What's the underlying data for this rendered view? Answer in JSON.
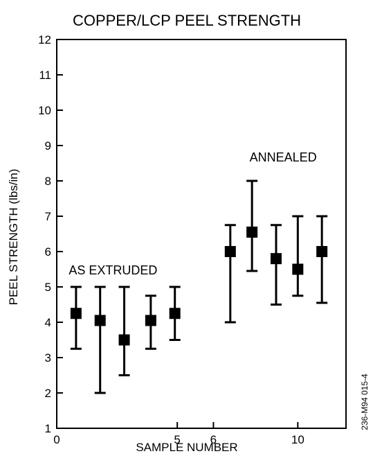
{
  "chart_data": {
    "type": "scatter",
    "title": "COPPER/LCP PEEL STRENGTH",
    "xlabel": "SAMPLE NUMBER",
    "ylabel": "PEEL STRENGTH (lbs/in)",
    "xlim": [
      0,
      12
    ],
    "ylim": [
      1,
      12
    ],
    "yticks": [
      1,
      2,
      3,
      4,
      5,
      6,
      7,
      8,
      9,
      10,
      11,
      12
    ],
    "xtick_labels": [
      {
        "x": 0,
        "label": "0"
      },
      {
        "x": 5,
        "label": "5"
      },
      {
        "x": 6.5,
        "label": "6"
      },
      {
        "x": 10,
        "label": "10"
      }
    ],
    "grid": false,
    "series": [
      {
        "marker": "filled-square",
        "x": [
          0.8,
          1.8,
          2.8,
          3.9,
          4.9,
          7.2,
          8.1,
          9.1,
          10.0,
          11.0
        ],
        "y": [
          4.25,
          4.05,
          3.5,
          4.05,
          4.25,
          6.0,
          6.55,
          5.8,
          5.5,
          6.0
        ],
        "y_low": [
          3.25,
          2.0,
          2.5,
          3.25,
          3.5,
          4.0,
          5.45,
          4.5,
          4.75,
          4.55
        ],
        "y_high": [
          5.0,
          5.0,
          5.0,
          4.75,
          5.0,
          6.75,
          8.0,
          6.75,
          7.0,
          7.0
        ]
      }
    ],
    "annotations": [
      {
        "text": "AS EXTRUDED",
        "x": 0.5,
        "y": 5.35
      },
      {
        "text": "ANNEALED",
        "x": 8.0,
        "y": 8.55
      }
    ],
    "side_code": "236-M94 015-4"
  }
}
